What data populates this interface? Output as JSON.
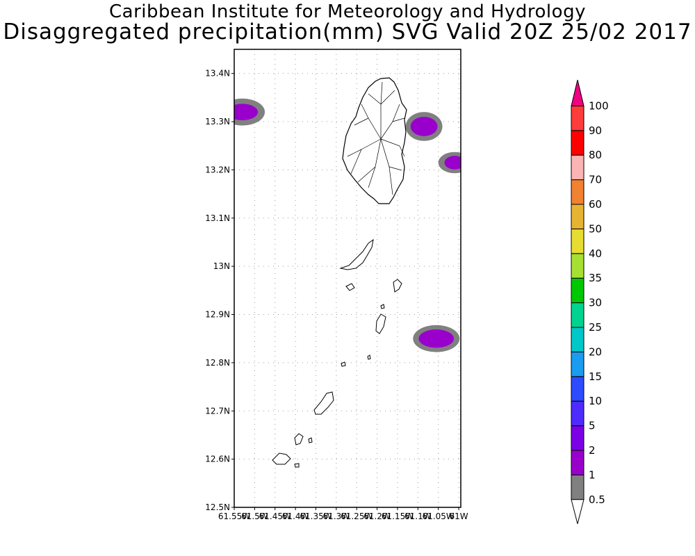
{
  "header": {
    "institute": "Caribbean Institute for Meteorology and Hydrology",
    "product": "Disaggregated precipitation(mm) SVG Valid 20Z 25/02 2017"
  },
  "map": {
    "lat_range": [
      12.5,
      13.45
    ],
    "lon_range": [
      -61.55,
      -60.995
    ],
    "lat_ticks": [
      {
        "value": 13.4,
        "label": "13.4N"
      },
      {
        "value": 13.3,
        "label": "13.3N"
      },
      {
        "value": 13.2,
        "label": "13.2N"
      },
      {
        "value": 13.1,
        "label": "13.1N"
      },
      {
        "value": 13.0,
        "label": "13N"
      },
      {
        "value": 12.9,
        "label": "12.9N"
      },
      {
        "value": 12.8,
        "label": "12.8N"
      },
      {
        "value": 12.7,
        "label": "12.7N"
      },
      {
        "value": 12.6,
        "label": "12.6N"
      },
      {
        "value": 12.5,
        "label": "12.5N"
      }
    ],
    "lon_ticks": [
      {
        "value": -61.55,
        "label": "61.55W"
      },
      {
        "value": -61.5,
        "label": "61.5W"
      },
      {
        "value": -61.45,
        "label": "61.45W"
      },
      {
        "value": -61.4,
        "label": "61.4W"
      },
      {
        "value": -61.35,
        "label": "61.35W"
      },
      {
        "value": -61.3,
        "label": "61.3W"
      },
      {
        "value": -61.25,
        "label": "61.25W"
      },
      {
        "value": -61.2,
        "label": "61.2W"
      },
      {
        "value": -61.15,
        "label": "61.15W"
      },
      {
        "value": -61.1,
        "label": "61.1W"
      },
      {
        "value": -61.05,
        "label": "61.05W"
      },
      {
        "value": -61.0,
        "label": "61W"
      }
    ],
    "rain_cells": [
      {
        "name": "northwest-cell",
        "lon": -61.53,
        "lat": 13.32,
        "r_outer_lon": 0.055,
        "r_outer_lat": 0.028,
        "r_inner_lon": 0.038,
        "r_inner_lat": 0.017,
        "color_outer": "#808080",
        "color_inner": "#9900cc"
      },
      {
        "name": "east-saint-vincent-cell",
        "lon": -61.085,
        "lat": 13.29,
        "r_outer_lon": 0.045,
        "r_outer_lat": 0.03,
        "r_inner_lon": 0.033,
        "r_inner_lat": 0.02,
        "color_outer": "#808080",
        "color_inner": "#9900cc"
      },
      {
        "name": "east-edge-cell",
        "lon": -61.01,
        "lat": 13.215,
        "r_outer_lon": 0.04,
        "r_outer_lat": 0.022,
        "r_inner_lon": 0.025,
        "r_inner_lat": 0.014,
        "color_outer": "#808080",
        "color_inner": "#9900cc"
      },
      {
        "name": "east-grenadines-cell",
        "lon": -61.055,
        "lat": 12.85,
        "r_outer_lon": 0.057,
        "r_outer_lat": 0.028,
        "r_inner_lon": 0.043,
        "r_inner_lat": 0.019,
        "color_outer": "#808080",
        "color_inner": "#9900cc"
      }
    ]
  },
  "colorbar": {
    "colors": [
      "#808080",
      "#9900cc",
      "#7b00e6",
      "#4e2cff",
      "#2e4bff",
      "#1a9cf0",
      "#00c8c8",
      "#00d490",
      "#00c800",
      "#a6e033",
      "#e6dc32",
      "#e6b432",
      "#f08232",
      "#fab4b4",
      "#ff0000",
      "#ff3c3c",
      "#f00082"
    ],
    "labels": [
      "0.5",
      "1",
      "2",
      "5",
      "10",
      "15",
      "20",
      "25",
      "30",
      "35",
      "40",
      "50",
      "60",
      "70",
      "80",
      "90",
      "100"
    ]
  }
}
